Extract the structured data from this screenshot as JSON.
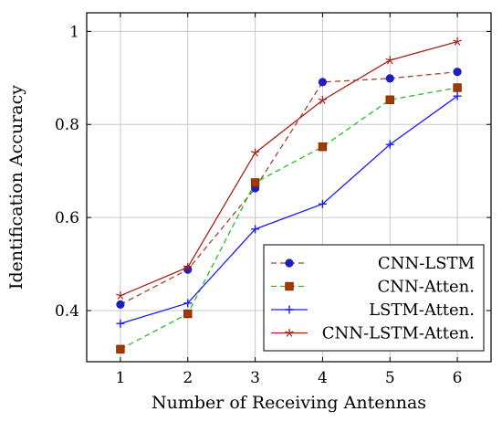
{
  "chart_data": {
    "type": "line",
    "title": "",
    "xlabel": "Number of Receiving Antennas",
    "ylabel": "Identification Accuracy",
    "x": [
      1,
      2,
      3,
      4,
      5,
      6
    ],
    "xlim": [
      0.5,
      6.5
    ],
    "ylim": [
      0.29,
      1.04
    ],
    "xticks": [
      "1",
      "2",
      "3",
      "4",
      "5",
      "6"
    ],
    "yticks": [
      "0.4",
      "0.6",
      "0.8",
      "1"
    ],
    "ytick_values": [
      0.4,
      0.6,
      0.8,
      1.0
    ],
    "grid": true,
    "legend_position": "bottom-right",
    "series": [
      {
        "name": "CNN-LSTM",
        "values": [
          0.413,
          0.488,
          0.663,
          0.891,
          0.899,
          0.913
        ],
        "line_color": "#a5442a",
        "marker_color": "#1f1fbf",
        "line_style": "dashed",
        "marker": "circle"
      },
      {
        "name": "CNN-Atten.",
        "values": [
          0.317,
          0.393,
          0.675,
          0.752,
          0.853,
          0.879
        ],
        "line_color": "#26c026",
        "marker_color": "#a23a00",
        "line_style": "dashed",
        "marker": "square"
      },
      {
        "name": "LSTM-Atten.",
        "values": [
          0.372,
          0.416,
          0.575,
          0.629,
          0.757,
          0.861
        ],
        "line_color": "#1a1aff",
        "marker_color": "#1a1aff",
        "line_style": "solid",
        "marker": "plus"
      },
      {
        "name": "CNN-LSTM-Atten.",
        "values": [
          0.432,
          0.493,
          0.739,
          0.852,
          0.938,
          0.978
        ],
        "line_color": "#a5221a",
        "marker_color": "#a5221a",
        "line_style": "solid",
        "marker": "star"
      }
    ]
  }
}
